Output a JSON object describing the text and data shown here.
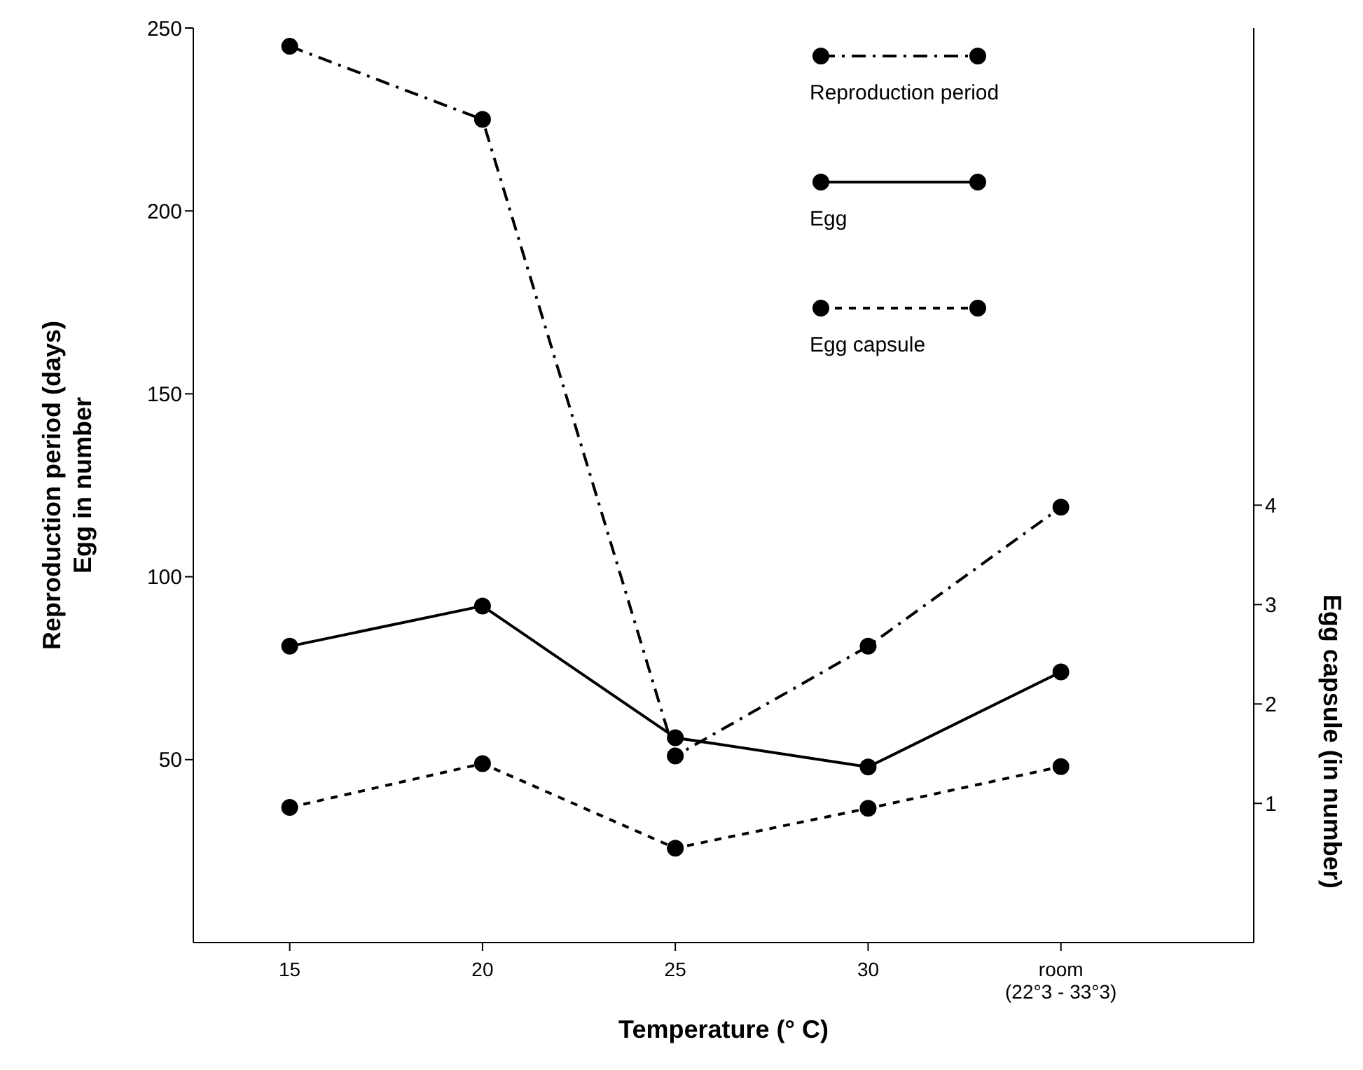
{
  "chart_data": {
    "type": "line",
    "xlabel": "Temperature (° C)",
    "ylabel": "Reproduction period (days)\nEgg in number",
    "y2label": "Egg capsule (in number)",
    "categories": [
      "15",
      "20",
      "25",
      "30",
      "room\n(22°3 - 33°3)"
    ],
    "ylim": [
      0,
      250
    ],
    "yticks": [
      50,
      100,
      150,
      200,
      250
    ],
    "y2lim": [
      -0.4,
      8.8
    ],
    "y2ticks": [
      1,
      2,
      3,
      4
    ],
    "legend": "top right",
    "grid": false,
    "marker": "circle",
    "series": [
      {
        "name": "Reproduction period",
        "color": "#000000",
        "line_style": "dashdot",
        "values": [
          245,
          225,
          51,
          81,
          119
        ]
      },
      {
        "name": "Egg",
        "color": "#000000",
        "line_style": "solid",
        "values": [
          81,
          92,
          56,
          48,
          74
        ]
      },
      {
        "name": "Egg capsule",
        "color": "#000000",
        "line_style": "dashed",
        "axis": "y2",
        "values": [
          0.96,
          1.4,
          0.55,
          0.95,
          1.37
        ]
      }
    ]
  }
}
